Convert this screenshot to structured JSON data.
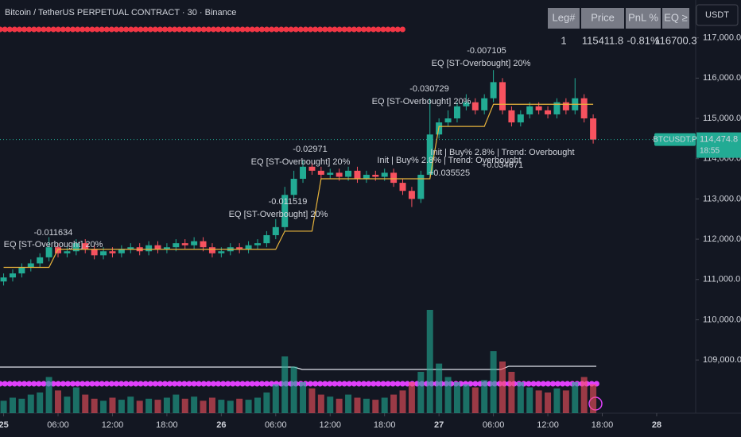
{
  "chart_data": {
    "type": "candlestick",
    "title": "Bitcoin / TetherUS PERPETUAL CONTRACT · 30 · Binance",
    "currency_button": "USDT",
    "symbol_label": "BTCUSDT.P",
    "countdown": "18:55",
    "last_price": {
      "value": 114474.8,
      "label": "114,474.8"
    },
    "table": {
      "header": [
        "Leg#",
        "Price",
        "PnL %",
        "EQ ≥"
      ],
      "row": [
        "1",
        "115411.8",
        "-0.81%",
        "116700.3"
      ]
    },
    "annotations": [
      "-0.007105",
      "EQ [ST-Overbought] 20%",
      "-0.030729",
      "EQ [ST-Overbought] 20%",
      "-0.02971",
      "EQ [ST-Overbought] 20%",
      "-0.011519",
      "EQ [ST-Overbought] 20%",
      "-0.011634",
      "EQ [ST-Overbought] 20%",
      "Init | Buy% 2.8% | Trend: Overbought",
      "+0.034671",
      "Init | Buy% 2.8% | Trend: Overbought",
      "+0.035525"
    ],
    "up_color": "#22ab94",
    "down_color": "#f7525f",
    "trend_color": "#e8b43c",
    "xlim": [
      -0.4,
      76.3
    ],
    "xticks": [
      {
        "value": 0,
        "label": "25"
      },
      {
        "value": 6,
        "label": "06:00"
      },
      {
        "value": 12,
        "label": "12:00"
      },
      {
        "value": 18,
        "label": "18:00"
      },
      {
        "value": 24,
        "label": "26"
      },
      {
        "value": 30,
        "label": "06:00"
      },
      {
        "value": 36,
        "label": "12:00"
      },
      {
        "value": 42,
        "label": "18:00"
      },
      {
        "value": 48,
        "label": "27"
      },
      {
        "value": 54,
        "label": "06:00"
      },
      {
        "value": 60,
        "label": "12:00"
      },
      {
        "value": 66,
        "label": "18:00"
      },
      {
        "value": 72,
        "label": "28"
      }
    ],
    "ylim": [
      107680,
      117940
    ],
    "yticks": [
      {
        "value": 109000,
        "label": "109,000.0"
      },
      {
        "value": 110000,
        "label": "110,000.0"
      },
      {
        "value": 111000,
        "label": "111,000.0"
      },
      {
        "value": 112000,
        "label": "112,000.0"
      },
      {
        "value": 113000,
        "label": "113,000.0"
      },
      {
        "value": 114000,
        "label": "114,000.0"
      },
      {
        "value": 115000,
        "label": "115,000.0"
      },
      {
        "value": 116000,
        "label": "116,000.0"
      },
      {
        "value": 117000,
        "label": "117,000.0"
      }
    ],
    "volume_lim": [
      0,
      100
    ],
    "open": [
      110950,
      111050,
      111150,
      111300,
      111400,
      111550,
      111800,
      111650,
      111700,
      111900,
      111750,
      111600,
      111700,
      111650,
      111750,
      111800,
      111700,
      111850,
      111750,
      111800,
      111900,
      111850,
      111950,
      111800,
      111650,
      111700,
      111800,
      111750,
      111850,
      111900,
      112100,
      112300,
      113100,
      113500,
      113800,
      113700,
      113600,
      113650,
      113550,
      113700,
      113500,
      113600,
      113550,
      113650,
      113400,
      113200,
      113000,
      113600,
      114600,
      114900,
      115000,
      115300,
      115400,
      115200,
      115500,
      115900,
      115200,
      114900,
      115100,
      115300,
      115200,
      115100,
      115400,
      115200,
      115500,
      115000
    ],
    "high": [
      111150,
      111250,
      111400,
      111500,
      111650,
      112050,
      111900,
      111800,
      112000,
      112000,
      111850,
      111800,
      111800,
      111850,
      111900,
      111900,
      111950,
      111950,
      111900,
      112000,
      112000,
      112050,
      112050,
      111900,
      111800,
      111900,
      111900,
      111950,
      112000,
      112200,
      112500,
      113300,
      113700,
      113950,
      113900,
      113800,
      113750,
      113750,
      113800,
      113800,
      113700,
      113700,
      113750,
      113750,
      113500,
      113300,
      113700,
      115500,
      115000,
      115200,
      115400,
      115600,
      115500,
      115600,
      116200,
      116000,
      115300,
      115200,
      115400,
      115400,
      115300,
      115500,
      115500,
      116000,
      115600,
      115100
    ],
    "low": [
      110850,
      110950,
      111050,
      111200,
      111300,
      111450,
      111550,
      111550,
      111600,
      111650,
      111500,
      111500,
      111550,
      111550,
      111650,
      111600,
      111600,
      111650,
      111650,
      111700,
      111750,
      111750,
      111700,
      111550,
      111550,
      111600,
      111650,
      111650,
      111750,
      111800,
      112000,
      112200,
      113000,
      113400,
      113600,
      113500,
      113500,
      113450,
      113450,
      113400,
      113400,
      113450,
      113450,
      113300,
      113100,
      112800,
      112900,
      113500,
      114500,
      114800,
      114900,
      115200,
      115100,
      115100,
      115400,
      115100,
      114800,
      114800,
      115000,
      115100,
      115000,
      115000,
      115100,
      115100,
      114900,
      114375
    ],
    "close": [
      111050,
      111150,
      111300,
      111400,
      111550,
      111800,
      111650,
      111700,
      111900,
      111750,
      111600,
      111700,
      111650,
      111750,
      111800,
      111700,
      111850,
      111750,
      111800,
      111900,
      111850,
      111950,
      111800,
      111650,
      111700,
      111800,
      111750,
      111850,
      111900,
      112100,
      112300,
      113100,
      113500,
      113800,
      113700,
      113600,
      113650,
      113550,
      113700,
      113500,
      113600,
      113550,
      113650,
      113400,
      113200,
      113000,
      113600,
      114600,
      114900,
      115000,
      115300,
      115400,
      115200,
      115500,
      115900,
      115200,
      114900,
      115100,
      115300,
      115200,
      115100,
      115400,
      115200,
      115500,
      115000,
      114475
    ],
    "volume": [
      12,
      15,
      14,
      18,
      20,
      35,
      22,
      16,
      25,
      18,
      14,
      12,
      15,
      13,
      16,
      12,
      14,
      13,
      15,
      18,
      14,
      16,
      12,
      15,
      13,
      12,
      14,
      13,
      15,
      20,
      28,
      55,
      45,
      30,
      24,
      18,
      16,
      14,
      18,
      15,
      14,
      13,
      15,
      18,
      22,
      30,
      40,
      100,
      48,
      35,
      30,
      28,
      25,
      32,
      60,
      50,
      40,
      30,
      25,
      22,
      20,
      24,
      22,
      30,
      35,
      28
    ],
    "trend": [
      111300,
      111300,
      111300,
      111300,
      111300,
      111300,
      111750,
      111750,
      111750,
      111750,
      111750,
      111750,
      111750,
      111750,
      111750,
      111750,
      111750,
      111750,
      111750,
      111750,
      111750,
      111750,
      111750,
      111750,
      111750,
      111750,
      111750,
      111750,
      111750,
      111750,
      111750,
      112200,
      112200,
      112200,
      112200,
      113500,
      113500,
      113500,
      113500,
      113500,
      113500,
      113500,
      113500,
      113500,
      113500,
      113500,
      113500,
      113500,
      114800,
      114800,
      114800,
      114800,
      114800,
      114800,
      115350,
      115350,
      115350,
      115350,
      115350,
      115350,
      115350,
      115350,
      115350,
      115350,
      115350,
      115350
    ]
  }
}
